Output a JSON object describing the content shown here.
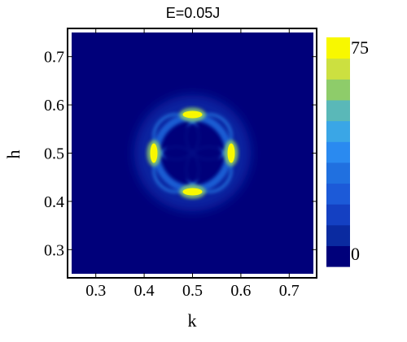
{
  "chart_data": {
    "type": "heatmap",
    "title": "E=0.05J",
    "xlabel": "k",
    "ylabel": "h",
    "xlim": [
      0.25,
      0.75
    ],
    "ylim": [
      0.25,
      0.75
    ],
    "x_ticks": [
      "0.3",
      "0.4",
      "0.5",
      "0.6",
      "0.7"
    ],
    "x_tick_values": [
      0.3,
      0.4,
      0.5,
      0.6,
      0.7
    ],
    "y_ticks": [
      "0.7",
      "0.6",
      "0.5",
      "0.4",
      "0.3"
    ],
    "y_tick_values": [
      0.7,
      0.6,
      0.5,
      0.4,
      0.3
    ],
    "colorbar": {
      "min_label": "0",
      "max_label": "75",
      "min": 0,
      "max": 75,
      "levels": 10,
      "colors": [
        "#00007a",
        "#0a2aa0",
        "#1440c2",
        "#1c5ad8",
        "#2070e0",
        "#2a8af0",
        "#3aa6e6",
        "#5ab8b8",
        "#8ecc6a",
        "#cce040",
        "#f8f800"
      ]
    },
    "feature": {
      "description_values": {
        "ring_center": [
          0.5,
          0.5
        ],
        "ring_radius_data": 0.075,
        "hotspots": [
          {
            "k": 0.5,
            "h": 0.58,
            "intensity": 75
          },
          {
            "k": 0.5,
            "h": 0.42,
            "intensity": 75
          },
          {
            "k": 0.42,
            "h": 0.5,
            "intensity": 75
          },
          {
            "k": 0.58,
            "h": 0.5,
            "intensity": 75
          }
        ],
        "background_intensity": 0
      }
    }
  }
}
